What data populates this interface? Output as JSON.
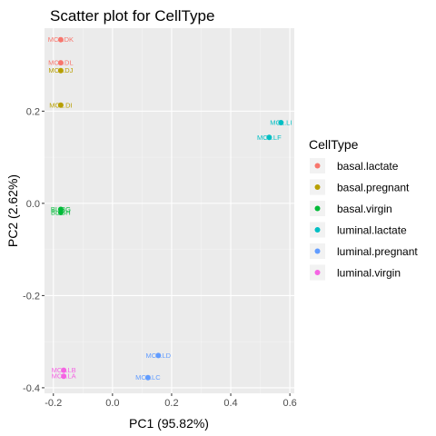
{
  "chart_data": {
    "type": "scatter",
    "title": "Scatter plot for CellType",
    "xlabel": "PC1 (95.82%)",
    "ylabel": "PC2 (2.62%)",
    "xlim": [
      -0.23,
      0.615
    ],
    "ylim": [
      -0.412,
      0.38
    ],
    "x_ticks": [
      -0.2,
      0.0,
      0.2,
      0.4,
      0.6
    ],
    "x_tick_labels": [
      "-0.2",
      "0.0",
      "0.2",
      "0.4",
      "0.6"
    ],
    "y_ticks": [
      -0.4,
      -0.2,
      0.0,
      0.2
    ],
    "y_tick_labels": [
      "-0.4",
      "-0.2",
      "0.0",
      "0.2"
    ],
    "grid": true,
    "panel_color": "#ebebeb",
    "legend": {
      "title": "CellType",
      "placement": "right"
    },
    "series": [
      {
        "name": "basal.lactate",
        "color": "#F8766D",
        "points": [
          {
            "label": "MCL.DK",
            "x": -0.175,
            "y": 0.355
          },
          {
            "label": "MCL.DL",
            "x": -0.175,
            "y": 0.305
          }
        ]
      },
      {
        "name": "basal.pregnant",
        "color": "#B79F00",
        "points": [
          {
            "label": "MCL.DJ",
            "x": -0.175,
            "y": 0.288
          },
          {
            "label": "MCL.DI",
            "x": -0.175,
            "y": 0.213
          }
        ]
      },
      {
        "name": "basal.virgin",
        "color": "#00BA38",
        "points": [
          {
            "label": "BL.BG",
            "x": -0.175,
            "y": -0.013
          },
          {
            "label": "BL.BH",
            "x": -0.175,
            "y": -0.02
          }
        ]
      },
      {
        "name": "luminal.lactate",
        "color": "#00BFC4",
        "points": [
          {
            "label": "MCL.LI",
            "x": 0.57,
            "y": 0.175
          },
          {
            "label": "MCL.LF",
            "x": 0.53,
            "y": 0.143
          }
        ]
      },
      {
        "name": "luminal.pregnant",
        "color": "#619CFF",
        "points": [
          {
            "label": "MCL.LD",
            "x": 0.155,
            "y": -0.33
          },
          {
            "label": "MCL.LC",
            "x": 0.12,
            "y": -0.378
          }
        ]
      },
      {
        "name": "luminal.virgin",
        "color": "#F564E3",
        "points": [
          {
            "label": "MCL.LB",
            "x": -0.165,
            "y": -0.362
          },
          {
            "label": "MCL.LA",
            "x": -0.165,
            "y": -0.375
          }
        ]
      }
    ]
  }
}
